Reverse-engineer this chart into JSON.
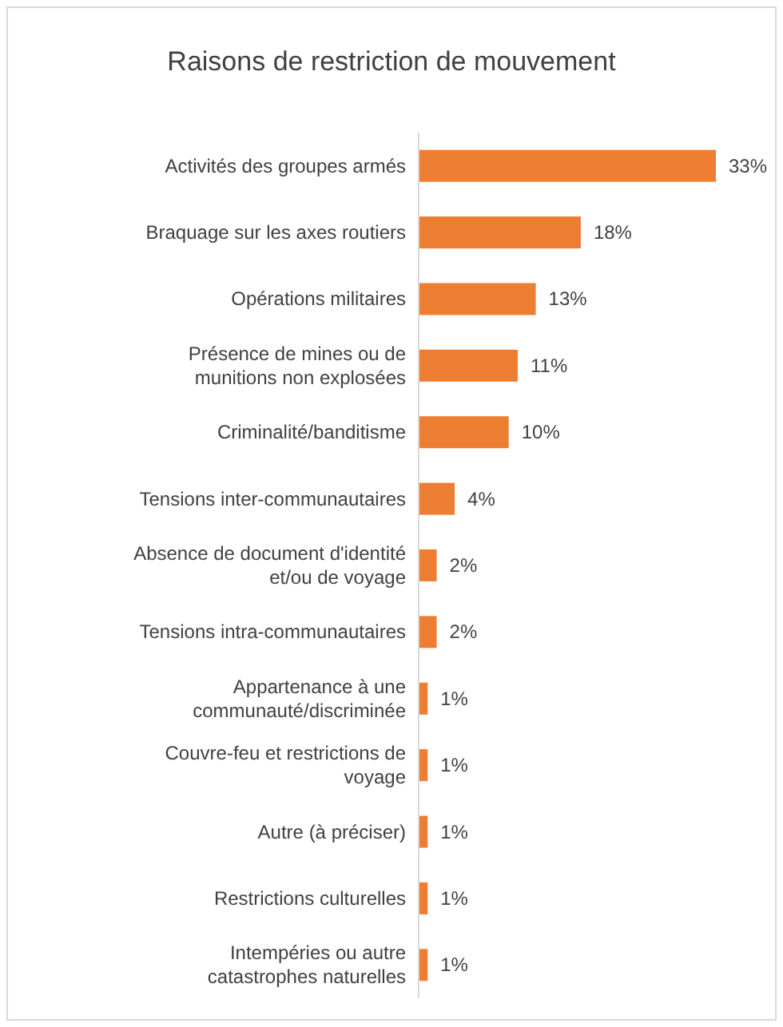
{
  "chart_data": {
    "type": "bar",
    "orientation": "horizontal",
    "title": "Raisons de restriction de mouvement",
    "categories": [
      "Activités des groupes armés",
      "Braquage sur les axes routiers",
      "Opérations militaires",
      "Présence de mines ou de munitions non explosées",
      "Criminalité/banditisme",
      "Tensions inter-communautaires",
      "Absence de document d'identité et/ou de voyage",
      "Tensions intra-communautaires",
      "Appartenance à une communauté/discriminée",
      "Couvre-feu et restrictions de voyage",
      "Autre (à préciser)",
      "Restrictions culturelles",
      "Intempéries ou autre catastrophes naturelles"
    ],
    "values": [
      33,
      18,
      13,
      11,
      10,
      4,
      2,
      2,
      1,
      1,
      1,
      1,
      1
    ],
    "value_labels": [
      "33%",
      "18%",
      "13%",
      "11%",
      "10%",
      "4%",
      "2%",
      "2%",
      "1%",
      "1%",
      "1%",
      "1%",
      "1%"
    ],
    "color": "#ed7d31"
  }
}
